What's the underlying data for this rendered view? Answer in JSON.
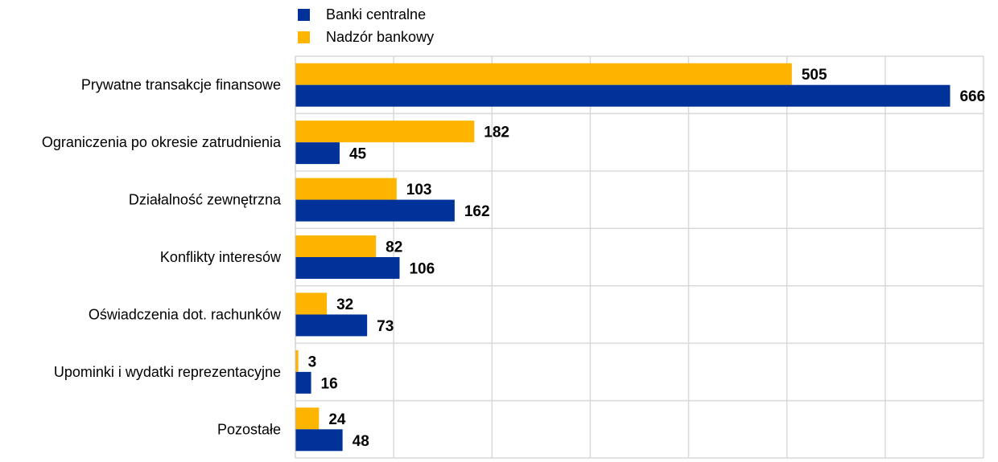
{
  "colors": {
    "banki_centralne": "#003299",
    "nadzor_bankowy": "#FFB400",
    "grid": "#D9D9D9"
  },
  "legend": [
    {
      "label": "Banki centralne",
      "color": "#003299"
    },
    {
      "label": "Nadzór bankowy",
      "color": "#FFB400"
    }
  ],
  "chart_data": {
    "type": "bar",
    "orientation": "horizontal",
    "categories": [
      "Prywatne transakcje finansowe",
      "Ograniczenia po okresie zatrudnienia",
      "Działalność zewnętrzna",
      "Konflikty interesów",
      "Oświadczenia dot. rachunków",
      "Upominki i wydatki reprezentacyjne",
      "Pozostałe"
    ],
    "series": [
      {
        "name": "Nadzór bankowy",
        "values": [
          505,
          182,
          103,
          82,
          32,
          3,
          24
        ]
      },
      {
        "name": "Banki centralne",
        "values": [
          666,
          45,
          162,
          106,
          73,
          16,
          48
        ]
      }
    ],
    "xlim": [
      0,
      700
    ],
    "grid": true,
    "legend_position": "top-left",
    "data_labels": true
  }
}
